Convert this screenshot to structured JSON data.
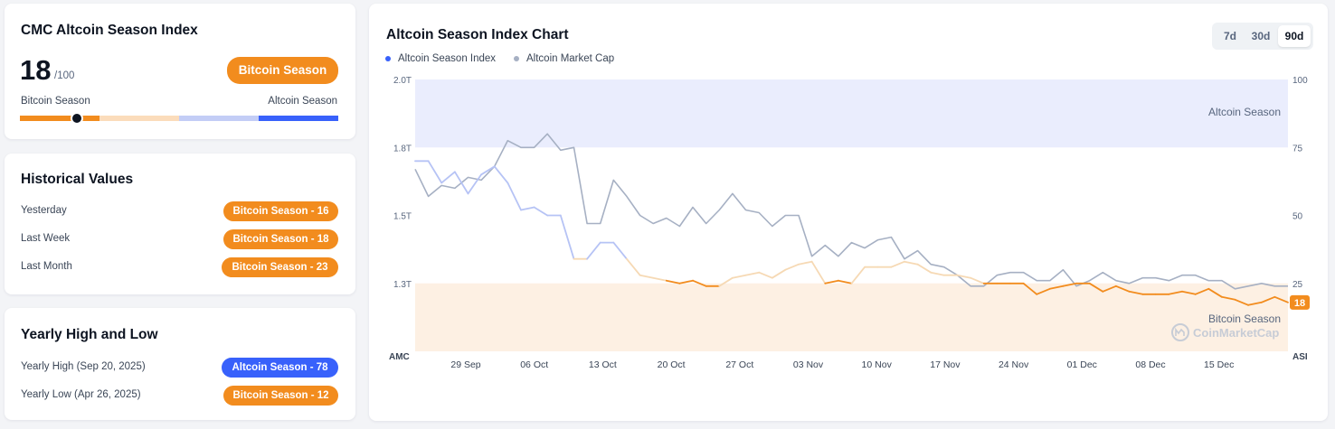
{
  "index_card": {
    "title": "CMC Altcoin Season Index",
    "value": "18",
    "max": "/100",
    "status": "Bitcoin Season",
    "left_label": "Bitcoin Season",
    "right_label": "Altcoin Season",
    "indicator_value": 18
  },
  "historical": {
    "title": "Historical Values",
    "rows": [
      {
        "label": "Yesterday",
        "value": "Bitcoin Season - 16"
      },
      {
        "label": "Last Week",
        "value": "Bitcoin Season - 18"
      },
      {
        "label": "Last Month",
        "value": "Bitcoin Season - 23"
      }
    ]
  },
  "yearly": {
    "title": "Yearly High and Low",
    "rows": [
      {
        "label": "Yearly High",
        "date": "(Sep 20, 2025)",
        "value": "Altcoin Season - 78"
      },
      {
        "label": "Yearly Low",
        "date": "(Apr 26, 2025)",
        "value": "Bitcoin Season - 12"
      }
    ]
  },
  "chart": {
    "title": "Altcoin Season Index Chart",
    "legend": [
      {
        "name": "Altcoin Season Index",
        "color": "#3861fb"
      },
      {
        "name": "Altcoin Market Cap",
        "color": "#a6b0c3"
      }
    ],
    "ranges": [
      "7d",
      "30d",
      "90d"
    ],
    "active_range": "90d",
    "zone_top_label": "Altcoin Season",
    "zone_bottom_label": "Bitcoin Season",
    "watermark": "CoinMarketCap",
    "left_axis_title": "AMC",
    "right_axis_title": "ASI",
    "current_value_label": "18"
  },
  "chart_data": {
    "type": "line",
    "x_labels": [
      "29 Sep",
      "06 Oct",
      "13 Oct",
      "20 Oct",
      "27 Oct",
      "03 Nov",
      "10 Nov",
      "17 Nov",
      "24 Nov",
      "01 Dec",
      "08 Dec",
      "15 Dec"
    ],
    "left_axis_ticks": [
      "2.0T",
      "1.8T",
      "1.5T",
      "1.3T"
    ],
    "right_axis_ticks": [
      "100",
      "75",
      "50",
      "25"
    ],
    "right_ylim": [
      0,
      100
    ],
    "altcoin_season_threshold": 75,
    "bitcoin_season_threshold": 25,
    "colors": {
      "asi_high": "#b6c3f5",
      "asi_low": "#f28c1e",
      "amc": "#a6b0c3",
      "top_zone": "#eaedfd",
      "bottom_zone": "#fdf0e3"
    },
    "series": [
      {
        "name": "Altcoin Season Index",
        "axis": "right",
        "values": [
          70,
          70,
          62,
          66,
          58,
          65,
          68,
          62,
          52,
          53,
          50,
          50,
          34,
          34,
          40,
          40,
          34,
          28,
          27,
          26,
          25,
          26,
          24,
          24,
          27,
          28,
          29,
          27,
          30,
          32,
          33,
          25,
          26,
          25,
          31,
          31,
          31,
          33,
          32,
          29,
          28,
          28,
          27,
          25,
          25,
          25,
          25,
          21,
          23,
          24,
          25,
          25,
          22,
          24,
          22,
          21,
          21,
          21,
          22,
          21,
          23,
          20,
          19,
          17,
          18,
          20,
          18
        ]
      },
      {
        "name": "Altcoin Market Cap",
        "axis": "left",
        "values": [
          1.72,
          1.62,
          1.66,
          1.65,
          1.69,
          1.68,
          1.73,
          1.82,
          1.8,
          1.8,
          1.84,
          1.79,
          1.8,
          1.52,
          1.52,
          1.68,
          1.62,
          1.55,
          1.52,
          1.54,
          1.51,
          1.58,
          1.52,
          1.57,
          1.63,
          1.57,
          1.56,
          1.51,
          1.55,
          1.55,
          1.4,
          1.44,
          1.4,
          1.45,
          1.43,
          1.46,
          1.47,
          1.39,
          1.42,
          1.37,
          1.36,
          1.33,
          1.29,
          1.29,
          1.33,
          1.34,
          1.34,
          1.31,
          1.31,
          1.35,
          1.29,
          1.31,
          1.34,
          1.31,
          1.3,
          1.32,
          1.32,
          1.31,
          1.33,
          1.33,
          1.31,
          1.31,
          1.28,
          1.29,
          1.3,
          1.29,
          1.29
        ]
      }
    ]
  }
}
